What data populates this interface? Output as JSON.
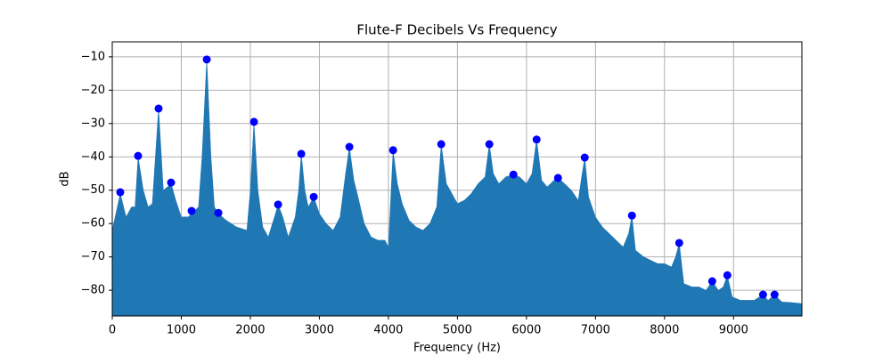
{
  "chart_data": {
    "type": "area",
    "title": "Flute-F Decibels Vs Frequency",
    "xlabel": "Frequency (Hz)",
    "ylabel": "dB",
    "xlim": [
      0,
      9990
    ],
    "ylim": [
      -87.7,
      -5.5
    ],
    "xticks": [
      0,
      1000,
      2000,
      3000,
      4000,
      5000,
      6000,
      7000,
      8000,
      9000
    ],
    "yticks": [
      {
        "value": -80,
        "label": "−80"
      },
      {
        "value": -70,
        "label": "−70"
      },
      {
        "value": -60,
        "label": "−60"
      },
      {
        "value": -50,
        "label": "−50"
      },
      {
        "value": -40,
        "label": "−40"
      },
      {
        "value": -30,
        "label": "−30"
      },
      {
        "value": -20,
        "label": "−20"
      },
      {
        "value": -10,
        "label": "−10"
      }
    ],
    "grid": true,
    "series": [
      {
        "type": "area",
        "color": "#1f77b4",
        "x": [
          0,
          116,
          200,
          280,
          330,
          374,
          450,
          520,
          580,
          671,
          740,
          800,
          852,
          920,
          1000,
          1100,
          1149,
          1250,
          1300,
          1369,
          1430,
          1480,
          1537,
          1650,
          1800,
          1950,
          2000,
          2053,
          2110,
          2180,
          2260,
          2350,
          2402,
          2470,
          2550,
          2650,
          2700,
          2738,
          2790,
          2840,
          2918,
          3000,
          3100,
          3200,
          3300,
          3380,
          3435,
          3500,
          3560,
          3650,
          3750,
          3850,
          3950,
          4000,
          4068,
          4130,
          4200,
          4300,
          4400,
          4500,
          4600,
          4700,
          4765,
          4840,
          4920,
          5000,
          5100,
          5200,
          5300,
          5400,
          5462,
          5520,
          5600,
          5700,
          5811,
          5900,
          6000,
          6080,
          6147,
          6220,
          6300,
          6400,
          6457,
          6550,
          6650,
          6750,
          6800,
          6844,
          6900,
          7000,
          7100,
          7200,
          7300,
          7400,
          7480,
          7528,
          7580,
          7700,
          7800,
          7900,
          8000,
          8100,
          8160,
          8213,
          8280,
          8400,
          8500,
          8600,
          8691,
          8780,
          8850,
          8910,
          8980,
          9100,
          9300,
          9427,
          9500,
          9594,
          9700,
          9850,
          9990
        ],
        "values": [
          -62,
          -51,
          -58,
          -55,
          -55,
          -40,
          -50,
          -55,
          -54,
          -25.5,
          -50,
          -49,
          -48,
          -53,
          -58,
          -58,
          -57,
          -55,
          -40,
          -10.8,
          -40,
          -55,
          -57,
          -59,
          -61,
          -62,
          -50,
          -29.5,
          -50,
          -61,
          -64,
          -58,
          -54.3,
          -58,
          -64,
          -58,
          -50,
          -39.1,
          -50,
          -55,
          -52,
          -57,
          -60,
          -62,
          -58,
          -45,
          -37,
          -47,
          -52,
          -60,
          -64,
          -65,
          -65,
          -67,
          -38,
          -48,
          -54,
          -59,
          -61,
          -62,
          -60,
          -55,
          -36.2,
          -48,
          -51,
          -54,
          -53,
          -51,
          -48,
          -46,
          -36.2,
          -45,
          -48,
          -46,
          -45.3,
          -46,
          -48,
          -45,
          -34.8,
          -47,
          -49,
          -47,
          -46.3,
          -48,
          -50,
          -53,
          -46,
          -40.2,
          -52,
          -58,
          -61,
          -63,
          -65,
          -67,
          -63,
          -57.6,
          -68,
          -70,
          -71,
          -72,
          -72,
          -73,
          -70,
          -65.8,
          -78,
          -79,
          -79,
          -80,
          -77.3,
          -80,
          -79,
          -75.5,
          -82,
          -83,
          -83,
          -81.3,
          -83,
          -81.3,
          -83.5,
          -83.7,
          -84
        ]
      },
      {
        "type": "scatter",
        "color": "#0000ff",
        "x": [
          116,
          374,
          671,
          852,
          1149,
          1369,
          1537,
          2053,
          2402,
          2738,
          2918,
          3435,
          4068,
          4765,
          5462,
          5811,
          6147,
          6457,
          6844,
          7528,
          8213,
          8691,
          8910,
          9427,
          9594
        ],
        "values": [
          -50.6,
          -39.7,
          -25.5,
          -47.7,
          -56.2,
          -10.8,
          -56.8,
          -29.5,
          -54.3,
          -39.1,
          -52,
          -37,
          -38,
          -36.2,
          -36.2,
          -45.3,
          -34.8,
          -46.3,
          -40.2,
          -57.6,
          -65.8,
          -77.3,
          -75.5,
          -81.3,
          -81.3
        ]
      }
    ]
  }
}
